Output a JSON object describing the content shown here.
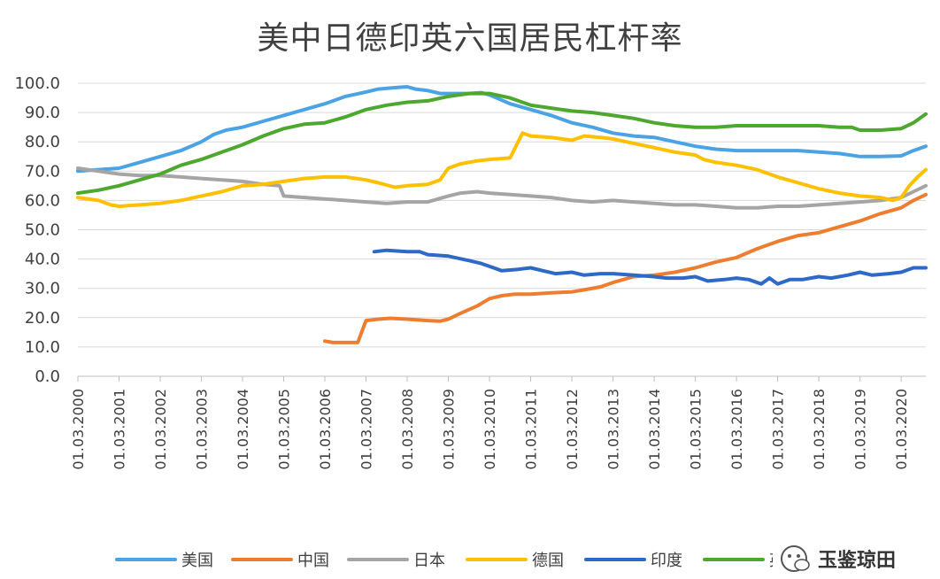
{
  "chart_data": {
    "type": "line",
    "title": "美中日德印英六国居民杠杆率",
    "ylim": [
      0,
      100
    ],
    "y_ticks": [
      "0.0",
      "10.0",
      "20.0",
      "30.0",
      "40.0",
      "50.0",
      "60.0",
      "70.0",
      "80.0",
      "90.0",
      "100.0"
    ],
    "x_ticks": [
      "01.03.2000",
      "01.03.2001",
      "01.03.2002",
      "01.03.2003",
      "01.03.2004",
      "01.03.2005",
      "01.03.2006",
      "01.03.2007",
      "01.03.2008",
      "01.03.2009",
      "01.03.2010",
      "01.03.2011",
      "01.03.2012",
      "01.03.2013",
      "01.03.2014",
      "01.03.2015",
      "01.03.2016",
      "01.03.2017",
      "01.03.2018",
      "01.03.2019",
      "01.03.2020"
    ],
    "grid": "horizontal",
    "legend_position": "bottom",
    "series": [
      {
        "name": "美国",
        "color": "#4BA3E3",
        "points": [
          [
            2000.0,
            70
          ],
          [
            2000.5,
            70.5
          ],
          [
            2001.0,
            71
          ],
          [
            2001.5,
            73
          ],
          [
            2002.0,
            75
          ],
          [
            2002.5,
            77
          ],
          [
            2003.0,
            80
          ],
          [
            2003.3,
            82.5
          ],
          [
            2003.6,
            84
          ],
          [
            2004.0,
            85
          ],
          [
            2004.5,
            87
          ],
          [
            2005.0,
            89
          ],
          [
            2005.5,
            91
          ],
          [
            2006.0,
            93
          ],
          [
            2006.5,
            95.5
          ],
          [
            2007.0,
            97
          ],
          [
            2007.3,
            98
          ],
          [
            2007.7,
            98.5
          ],
          [
            2008.0,
            98.8
          ],
          [
            2008.2,
            98
          ],
          [
            2008.5,
            97.5
          ],
          [
            2008.8,
            96.5
          ],
          [
            2009.0,
            96.5
          ],
          [
            2009.5,
            96.5
          ],
          [
            2009.8,
            96.8
          ],
          [
            2010.0,
            96
          ],
          [
            2010.5,
            93
          ],
          [
            2011.0,
            91
          ],
          [
            2011.5,
            89
          ],
          [
            2012.0,
            86.5
          ],
          [
            2012.5,
            85
          ],
          [
            2013.0,
            83
          ],
          [
            2013.5,
            82
          ],
          [
            2014.0,
            81.5
          ],
          [
            2014.5,
            80
          ],
          [
            2015.0,
            78.5
          ],
          [
            2015.5,
            77.5
          ],
          [
            2016.0,
            77
          ],
          [
            2016.5,
            77
          ],
          [
            2017.0,
            77
          ],
          [
            2017.5,
            77
          ],
          [
            2018.0,
            76.5
          ],
          [
            2018.5,
            76
          ],
          [
            2019.0,
            75
          ],
          [
            2019.5,
            75
          ],
          [
            2020.0,
            75.2
          ],
          [
            2020.3,
            77
          ],
          [
            2020.6,
            78.5
          ]
        ]
      },
      {
        "name": "中国",
        "color": "#ED7D31",
        "points": [
          [
            2006.0,
            12
          ],
          [
            2006.2,
            11.5
          ],
          [
            2006.5,
            11.5
          ],
          [
            2006.8,
            11.5
          ],
          [
            2007.0,
            19
          ],
          [
            2007.3,
            19.5
          ],
          [
            2007.6,
            19.8
          ],
          [
            2008.0,
            19.5
          ],
          [
            2008.5,
            19
          ],
          [
            2008.8,
            18.8
          ],
          [
            2009.0,
            19.5
          ],
          [
            2009.3,
            21.5
          ],
          [
            2009.7,
            24
          ],
          [
            2010.0,
            26.5
          ],
          [
            2010.3,
            27.5
          ],
          [
            2010.6,
            28
          ],
          [
            2011.0,
            28
          ],
          [
            2011.5,
            28.5
          ],
          [
            2012.0,
            28.8
          ],
          [
            2012.3,
            29.5
          ],
          [
            2012.7,
            30.5
          ],
          [
            2013.0,
            32
          ],
          [
            2013.5,
            34
          ],
          [
            2014.0,
            34.5
          ],
          [
            2014.5,
            35.5
          ],
          [
            2015.0,
            37
          ],
          [
            2015.5,
            39
          ],
          [
            2016.0,
            40.5
          ],
          [
            2016.5,
            43.5
          ],
          [
            2017.0,
            46
          ],
          [
            2017.5,
            48
          ],
          [
            2018.0,
            49
          ],
          [
            2018.5,
            51
          ],
          [
            2019.0,
            53
          ],
          [
            2019.5,
            55.5
          ],
          [
            2020.0,
            57.5
          ],
          [
            2020.3,
            60
          ],
          [
            2020.6,
            62
          ]
        ]
      },
      {
        "name": "日本",
        "color": "#A5A5A5",
        "points": [
          [
            2000.0,
            71
          ],
          [
            2000.5,
            70
          ],
          [
            2001.0,
            69
          ],
          [
            2001.5,
            68.5
          ],
          [
            2002.0,
            68.5
          ],
          [
            2002.5,
            68
          ],
          [
            2003.0,
            67.5
          ],
          [
            2003.5,
            67
          ],
          [
            2004.0,
            66.5
          ],
          [
            2004.5,
            65.5
          ],
          [
            2004.9,
            65
          ],
          [
            2005.0,
            61.5
          ],
          [
            2005.5,
            61
          ],
          [
            2006.0,
            60.5
          ],
          [
            2006.5,
            60
          ],
          [
            2007.0,
            59.5
          ],
          [
            2007.5,
            59
          ],
          [
            2008.0,
            59.5
          ],
          [
            2008.5,
            59.5
          ],
          [
            2009.0,
            61.5
          ],
          [
            2009.3,
            62.5
          ],
          [
            2009.7,
            63
          ],
          [
            2010.0,
            62.5
          ],
          [
            2010.5,
            62
          ],
          [
            2011.0,
            61.5
          ],
          [
            2011.5,
            61
          ],
          [
            2012.0,
            60
          ],
          [
            2012.5,
            59.5
          ],
          [
            2013.0,
            60
          ],
          [
            2013.5,
            59.5
          ],
          [
            2014.0,
            59
          ],
          [
            2014.5,
            58.5
          ],
          [
            2015.0,
            58.5
          ],
          [
            2015.5,
            58
          ],
          [
            2016.0,
            57.5
          ],
          [
            2016.5,
            57.5
          ],
          [
            2017.0,
            58
          ],
          [
            2017.5,
            58
          ],
          [
            2018.0,
            58.5
          ],
          [
            2018.5,
            59
          ],
          [
            2019.0,
            59.5
          ],
          [
            2019.5,
            60
          ],
          [
            2020.0,
            61
          ],
          [
            2020.3,
            63
          ],
          [
            2020.6,
            65
          ]
        ]
      },
      {
        "name": "德国",
        "color": "#FFC000",
        "points": [
          [
            2000.0,
            61
          ],
          [
            2000.5,
            60
          ],
          [
            2000.8,
            58.5
          ],
          [
            2001.0,
            58
          ],
          [
            2001.5,
            58.5
          ],
          [
            2002.0,
            59
          ],
          [
            2002.5,
            60
          ],
          [
            2003.0,
            61.5
          ],
          [
            2003.5,
            63
          ],
          [
            2004.0,
            65
          ],
          [
            2004.5,
            65.5
          ],
          [
            2005.0,
            66.5
          ],
          [
            2005.5,
            67.5
          ],
          [
            2006.0,
            68
          ],
          [
            2006.5,
            68
          ],
          [
            2007.0,
            67
          ],
          [
            2007.3,
            66
          ],
          [
            2007.7,
            64.5
          ],
          [
            2008.0,
            65
          ],
          [
            2008.5,
            65.5
          ],
          [
            2008.8,
            67
          ],
          [
            2009.0,
            71
          ],
          [
            2009.3,
            72.5
          ],
          [
            2009.7,
            73.5
          ],
          [
            2010.0,
            74
          ],
          [
            2010.5,
            74.5
          ],
          [
            2010.8,
            83
          ],
          [
            2011.0,
            82
          ],
          [
            2011.5,
            81.5
          ],
          [
            2012.0,
            80.5
          ],
          [
            2012.3,
            82
          ],
          [
            2012.7,
            81.5
          ],
          [
            2013.0,
            81
          ],
          [
            2013.5,
            79.5
          ],
          [
            2014.0,
            78
          ],
          [
            2014.5,
            76.5
          ],
          [
            2015.0,
            75.5
          ],
          [
            2015.2,
            74
          ],
          [
            2015.5,
            73
          ],
          [
            2016.0,
            72
          ],
          [
            2016.5,
            70.5
          ],
          [
            2017.0,
            68
          ],
          [
            2017.5,
            66
          ],
          [
            2018.0,
            64
          ],
          [
            2018.5,
            62.5
          ],
          [
            2019.0,
            61.5
          ],
          [
            2019.5,
            61
          ],
          [
            2019.8,
            60
          ],
          [
            2020.0,
            61
          ],
          [
            2020.2,
            65
          ],
          [
            2020.4,
            68
          ],
          [
            2020.6,
            70.5
          ]
        ]
      },
      {
        "name": "印度",
        "color": "#2E69C7",
        "points": [
          [
            2007.2,
            42.5
          ],
          [
            2007.5,
            43
          ],
          [
            2008.0,
            42.5
          ],
          [
            2008.3,
            42.5
          ],
          [
            2008.5,
            41.5
          ],
          [
            2009.0,
            41
          ],
          [
            2009.5,
            39.5
          ],
          [
            2009.8,
            38.5
          ],
          [
            2010.0,
            37.5
          ],
          [
            2010.3,
            36
          ],
          [
            2010.7,
            36.5
          ],
          [
            2011.0,
            37
          ],
          [
            2011.3,
            36
          ],
          [
            2011.6,
            35
          ],
          [
            2012.0,
            35.5
          ],
          [
            2012.3,
            34.5
          ],
          [
            2012.7,
            35
          ],
          [
            2013.0,
            35
          ],
          [
            2013.5,
            34.5
          ],
          [
            2014.0,
            34
          ],
          [
            2014.3,
            33.5
          ],
          [
            2014.7,
            33.5
          ],
          [
            2015.0,
            34
          ],
          [
            2015.3,
            32.5
          ],
          [
            2015.7,
            33
          ],
          [
            2016.0,
            33.5
          ],
          [
            2016.3,
            33
          ],
          [
            2016.6,
            31.5
          ],
          [
            2016.8,
            33.5
          ],
          [
            2017.0,
            31.5
          ],
          [
            2017.3,
            33
          ],
          [
            2017.6,
            33
          ],
          [
            2018.0,
            34
          ],
          [
            2018.3,
            33.5
          ],
          [
            2018.7,
            34.5
          ],
          [
            2019.0,
            35.5
          ],
          [
            2019.3,
            34.5
          ],
          [
            2019.7,
            35
          ],
          [
            2020.0,
            35.5
          ],
          [
            2020.3,
            37
          ],
          [
            2020.6,
            37
          ]
        ]
      },
      {
        "name": "英国",
        "color": "#4EA72E",
        "points": [
          [
            2000.0,
            62.5
          ],
          [
            2000.5,
            63.5
          ],
          [
            2001.0,
            65
          ],
          [
            2001.5,
            67
          ],
          [
            2002.0,
            69
          ],
          [
            2002.5,
            72
          ],
          [
            2003.0,
            74
          ],
          [
            2003.5,
            76.5
          ],
          [
            2004.0,
            79
          ],
          [
            2004.5,
            82
          ],
          [
            2005.0,
            84.5
          ],
          [
            2005.5,
            86
          ],
          [
            2006.0,
            86.5
          ],
          [
            2006.5,
            88.5
          ],
          [
            2007.0,
            91
          ],
          [
            2007.5,
            92.5
          ],
          [
            2008.0,
            93.5
          ],
          [
            2008.5,
            94
          ],
          [
            2009.0,
            95.5
          ],
          [
            2009.5,
            96.5
          ],
          [
            2010.0,
            96.5
          ],
          [
            2010.5,
            95
          ],
          [
            2011.0,
            92.5
          ],
          [
            2011.5,
            91.5
          ],
          [
            2012.0,
            90.5
          ],
          [
            2012.5,
            90
          ],
          [
            2013.0,
            89
          ],
          [
            2013.5,
            88
          ],
          [
            2014.0,
            86.5
          ],
          [
            2014.5,
            85.5
          ],
          [
            2015.0,
            85
          ],
          [
            2015.5,
            85
          ],
          [
            2016.0,
            85.5
          ],
          [
            2016.5,
            85.5
          ],
          [
            2017.0,
            85.5
          ],
          [
            2017.5,
            85.5
          ],
          [
            2018.0,
            85.5
          ],
          [
            2018.5,
            85
          ],
          [
            2018.8,
            85
          ],
          [
            2019.0,
            84
          ],
          [
            2019.5,
            84
          ],
          [
            2020.0,
            84.5
          ],
          [
            2020.3,
            86.5
          ],
          [
            2020.6,
            89.5
          ]
        ]
      }
    ]
  },
  "watermark": {
    "text": "玉鉴琼田",
    "icon": "wechat-icon"
  }
}
